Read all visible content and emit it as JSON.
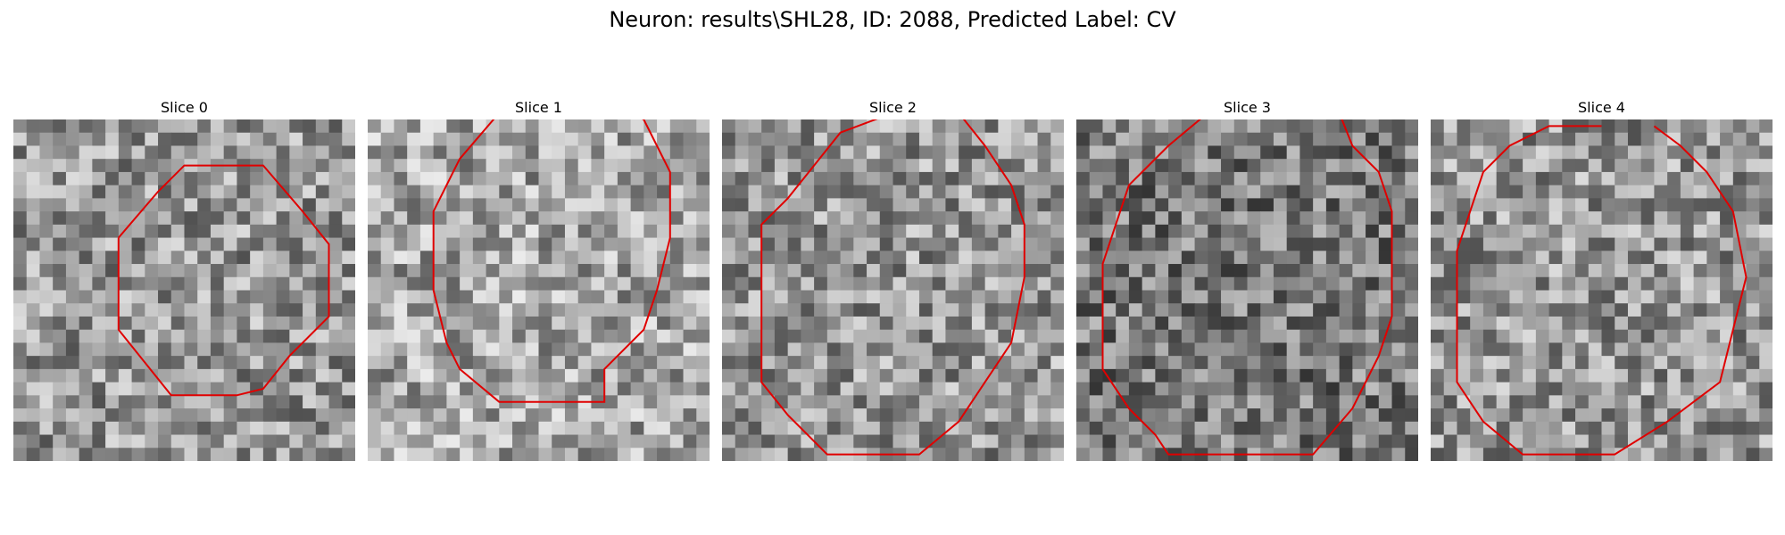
{
  "figure": {
    "title": "Neuron: results\\SHL28, ID: 2088, Predicted Label: CV",
    "contour_color": "#e00000"
  },
  "slices": [
    {
      "title": "Slice 0"
    },
    {
      "title": "Slice 1"
    },
    {
      "title": "Slice 2"
    },
    {
      "title": "Slice 3"
    },
    {
      "title": "Slice 4"
    }
  ]
}
